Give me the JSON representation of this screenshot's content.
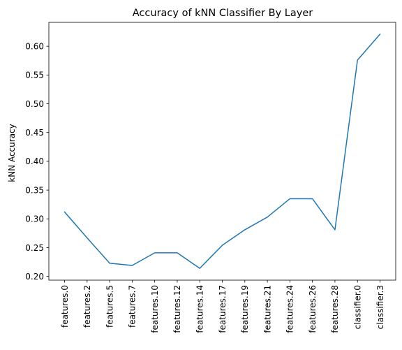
{
  "chart_data": {
    "type": "line",
    "title": "Accuracy of kNN Classifier By Layer",
    "xlabel": "",
    "ylabel": "kNN Accuracy",
    "categories": [
      "features.0",
      "features.2",
      "features.5",
      "features.7",
      "features.10",
      "features.12",
      "features.14",
      "features.17",
      "features.19",
      "features.21",
      "features.24",
      "features.26",
      "features.28",
      "classifier.0",
      "classifier.3"
    ],
    "series": [
      {
        "color": "#1f77b4",
        "values": [
          0.312,
          0.267,
          0.223,
          0.219,
          0.241,
          0.241,
          0.214,
          0.254,
          0.281,
          0.303,
          0.335,
          0.335,
          0.281,
          0.576,
          0.621
        ]
      }
    ],
    "yticks": [
      "0.20",
      "0.25",
      "0.30",
      "0.35",
      "0.40",
      "0.45",
      "0.50",
      "0.55",
      "0.60"
    ],
    "ylim": [
      0.1935,
      0.6415
    ],
    "grid": false,
    "legend": "none"
  }
}
